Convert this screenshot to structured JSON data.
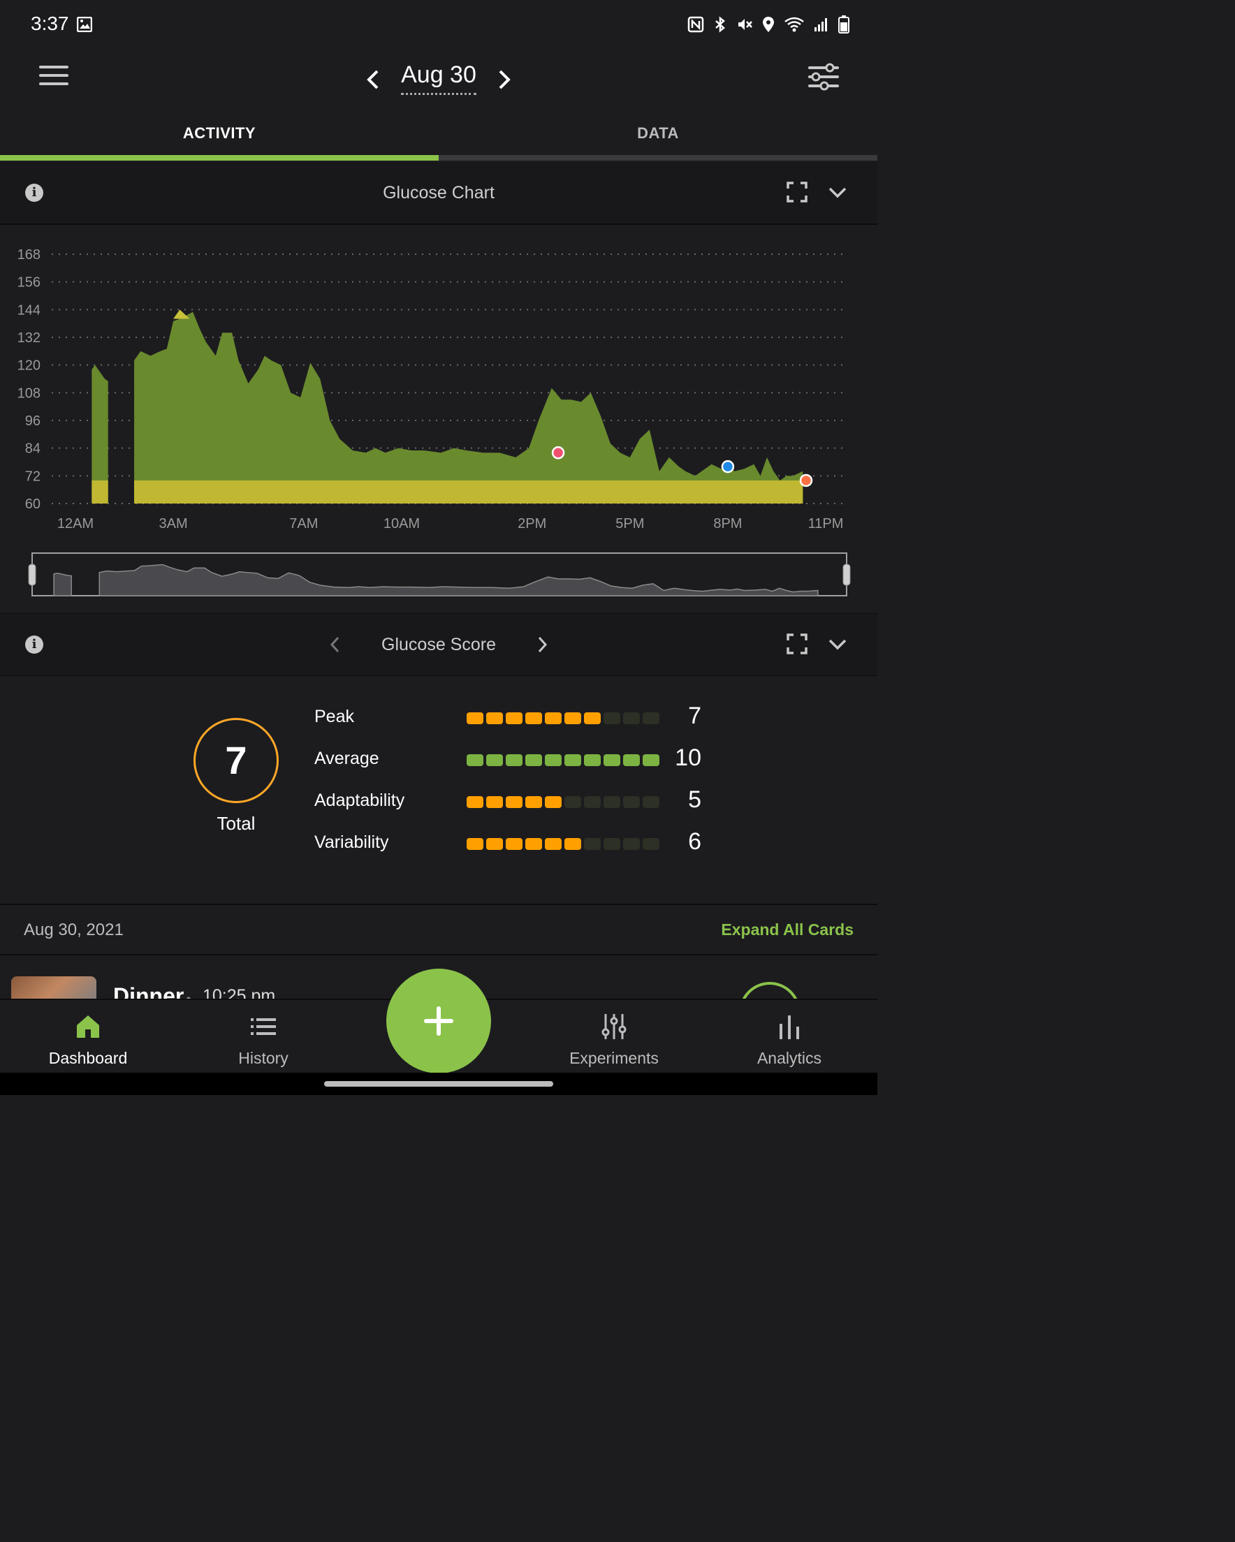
{
  "status_bar": {
    "time": "3:37"
  },
  "header": {
    "date": "Aug 30"
  },
  "tabs": [
    {
      "label": "ACTIVITY"
    },
    {
      "label": "DATA"
    }
  ],
  "glucose_chart": {
    "title": "Glucose Chart",
    "y_ticks": [
      "168",
      "156",
      "144",
      "132",
      "120",
      "108",
      "96",
      "84",
      "72",
      "60"
    ],
    "x_ticks": [
      "12AM",
      "3AM",
      "7AM",
      "10AM",
      "2PM",
      "5PM",
      "8PM",
      "11PM"
    ]
  },
  "chart_data": {
    "type": "area",
    "xlabel": "",
    "ylabel": "",
    "ylim": [
      60,
      168
    ],
    "y_ticks": [
      168,
      156,
      144,
      132,
      120,
      108,
      96,
      84,
      72,
      60
    ],
    "x_ticks": [
      "12AM",
      "3AM",
      "7AM",
      "10AM",
      "2PM",
      "5PM",
      "8PM",
      "11PM"
    ],
    "grid": true,
    "baseline_band": 70,
    "x_hours": [
      0.5,
      0.6,
      0.75,
      0.9,
      1.0,
      1.8,
      2.0,
      2.3,
      2.6,
      2.8,
      3.0,
      3.2,
      3.6,
      3.8,
      4.0,
      4.3,
      4.5,
      4.8,
      5.0,
      5.3,
      5.6,
      5.8,
      6.0,
      6.3,
      6.6,
      6.9,
      7.2,
      7.5,
      7.8,
      8.1,
      8.5,
      8.9,
      9.2,
      9.5,
      9.9,
      10.3,
      10.7,
      11.2,
      11.6,
      12.0,
      12.5,
      13.0,
      13.5,
      13.9,
      14.2,
      14.6,
      14.9,
      15.2,
      15.5,
      15.8,
      16.1,
      16.4,
      16.7,
      17.0,
      17.3,
      17.6,
      17.9,
      18.2,
      18.5,
      18.7,
      19.0,
      19.2,
      19.5,
      19.8,
      20.0,
      20.2,
      20.5,
      20.8,
      21.0,
      21.2,
      21.4,
      21.6,
      21.8,
      22.0,
      22.3
    ],
    "values": [
      118,
      120,
      117,
      114,
      113,
      122,
      126,
      124,
      126,
      127,
      139,
      140,
      143,
      136,
      130,
      124,
      134,
      134,
      122,
      112,
      118,
      124,
      122,
      120,
      108,
      106,
      121,
      114,
      96,
      88,
      83,
      82,
      84,
      82,
      84,
      83,
      83,
      82,
      84,
      83,
      82,
      82,
      80,
      84,
      96,
      110,
      105,
      105,
      104,
      108,
      98,
      86,
      82,
      80,
      88,
      92,
      74,
      80,
      76,
      74,
      72,
      74,
      77,
      75,
      78,
      74,
      75,
      77,
      72,
      80,
      74,
      70,
      72,
      72,
      74
    ],
    "markers": [
      {
        "x": 14.8,
        "y": 82,
        "color": "#f0506e"
      },
      {
        "x": 20.0,
        "y": 76,
        "color": "#1e88e5"
      },
      {
        "x": 22.4,
        "y": 70,
        "color": "#ff7043"
      }
    ],
    "colors": {
      "area": "#6a8a2e",
      "band": "#c0b832",
      "peak": "#c8c23a"
    }
  },
  "glucose_score": {
    "title": "Glucose Score",
    "total": {
      "value": "7",
      "label": "Total"
    },
    "rows": [
      {
        "label": "Peak",
        "value": "7",
        "filled": 7,
        "color": "#ffa000"
      },
      {
        "label": "Average",
        "value": "10",
        "filled": 10,
        "color": "#7cb342"
      },
      {
        "label": "Adaptability",
        "value": "5",
        "filled": 5,
        "color": "#ffa000"
      },
      {
        "label": "Variability",
        "value": "6",
        "filled": 6,
        "color": "#ffa000"
      }
    ]
  },
  "day_section": {
    "date": "Aug 30, 2021",
    "expand_all": "Expand All Cards"
  },
  "entry": {
    "meal": "Dinner",
    "separator": "•",
    "time": "10:25 pm"
  },
  "bottom_nav": [
    {
      "label": "Dashboard"
    },
    {
      "label": "History"
    },
    {
      "label": "Experiments"
    },
    {
      "label": "Analytics"
    }
  ],
  "accent": "#8bc34a"
}
